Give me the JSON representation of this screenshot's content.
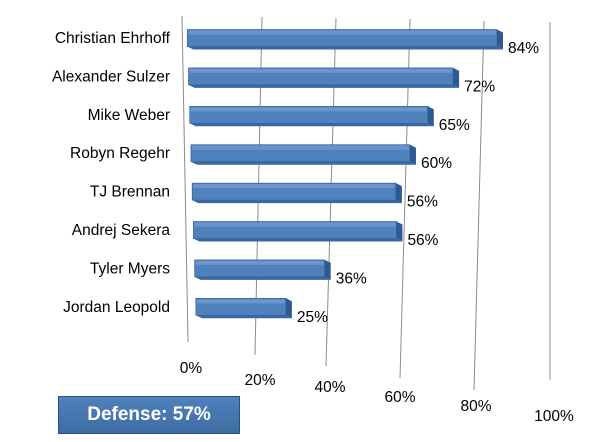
{
  "chart_data": {
    "type": "bar",
    "orientation": "horizontal",
    "style": "3d",
    "categories": [
      "Christian Ehrhoff",
      "Alexander Sulzer",
      "Mike Weber",
      "Robyn Regehr",
      "TJ Brennan",
      "Andrej Sekera",
      "Tyler Myers",
      "Jordan Leopold"
    ],
    "values": [
      84,
      72,
      65,
      60,
      56,
      56,
      36,
      25
    ],
    "value_labels": [
      "84%",
      "72%",
      "65%",
      "60%",
      "56%",
      "56%",
      "36%",
      "25%"
    ],
    "xlim": [
      0,
      100
    ],
    "x_ticks": [
      "0%",
      "20%",
      "40%",
      "60%",
      "80%",
      "100%"
    ],
    "grid": true,
    "bar_color": "#4f81bd"
  },
  "summary": {
    "label": "Defense: 57%",
    "color": "#4f81bd"
  }
}
